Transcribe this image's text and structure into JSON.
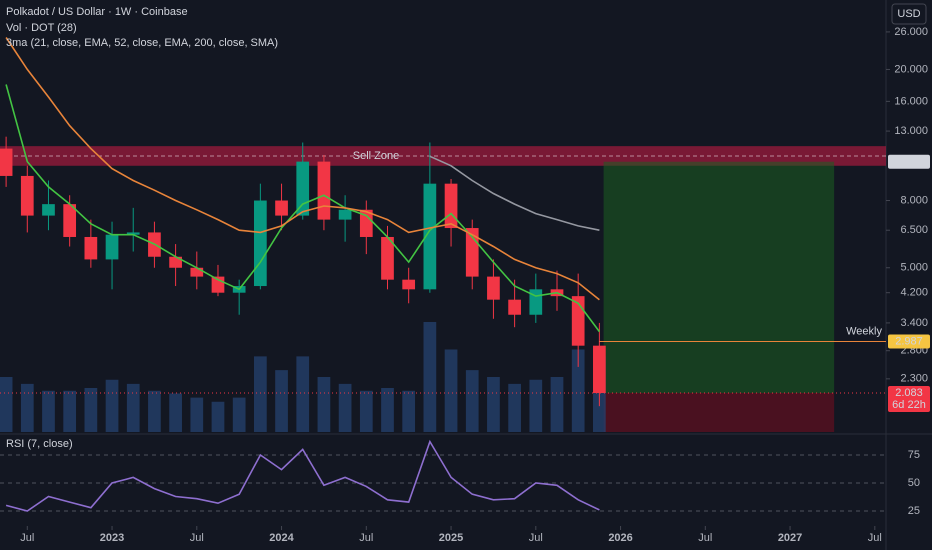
{
  "chart_data": {
    "type": "candlestick",
    "title": "Polkadot / US Dollar · 1W · Coinbase",
    "volume_title": "Vol · DOT (28)",
    "ma_title": "3ma (21, close, EMA, 52, close, EMA, 200, close, SMA)",
    "currency": "USD",
    "log_scale": true,
    "xlim": [
      2022.339,
      2027.566
    ],
    "ylim": [
      1.586,
      32.5
    ],
    "xticks": [
      {
        "value": 2022.5,
        "label": "Jul"
      },
      2023,
      {
        "value": 2023.5,
        "label": "Jul"
      },
      2024,
      {
        "value": 2024.5,
        "label": "Jul"
      },
      2025,
      {
        "value": 2025.5,
        "label": "Jul"
      },
      2026,
      {
        "value": 2026.5,
        "label": "Jul"
      },
      2027,
      {
        "value": 2027.5,
        "label": "Jul"
      }
    ],
    "yticks": [
      {
        "value": 26,
        "label": "26.000"
      },
      {
        "value": 20,
        "label": "20.000"
      },
      {
        "value": 16,
        "label": "16.000"
      },
      {
        "value": 13,
        "label": "13.000"
      },
      {
        "value": 8,
        "label": "8.000"
      },
      {
        "value": 6.5,
        "label": "6.500"
      },
      {
        "value": 5,
        "label": "5.000"
      },
      {
        "value": 4.2,
        "label": "4.200"
      },
      {
        "value": 3.4,
        "label": "3.400"
      },
      {
        "value": 2.8,
        "label": "2.800"
      },
      {
        "value": 2.3,
        "label": "2.300"
      }
    ],
    "up_color": "#089981",
    "down_color": "#f23645",
    "volume_color": "#24406b",
    "candles": [
      [
        2022.375,
        11.5,
        12.5,
        8.8,
        9.5,
        40
      ],
      [
        2022.5,
        9.5,
        10.2,
        6.4,
        7.2,
        35
      ],
      [
        2022.625,
        7.2,
        9.2,
        6.5,
        7.8,
        30
      ],
      [
        2022.75,
        7.8,
        8.3,
        5.8,
        6.2,
        30
      ],
      [
        2022.875,
        6.2,
        7.0,
        5.0,
        5.3,
        32
      ],
      [
        2023.0,
        5.3,
        6.9,
        4.3,
        6.3,
        38
      ],
      [
        2023.125,
        6.3,
        7.6,
        5.6,
        6.4,
        35
      ],
      [
        2023.25,
        6.4,
        6.9,
        5.0,
        5.4,
        30
      ],
      [
        2023.375,
        5.4,
        5.9,
        4.4,
        5.0,
        28
      ],
      [
        2023.5,
        5.0,
        5.6,
        4.3,
        4.7,
        25
      ],
      [
        2023.625,
        4.7,
        5.1,
        4.1,
        4.2,
        22
      ],
      [
        2023.75,
        4.2,
        4.6,
        3.6,
        4.4,
        25
      ],
      [
        2023.875,
        4.4,
        9.0,
        4.3,
        8.0,
        55
      ],
      [
        2024.0,
        8.0,
        9.0,
        6.5,
        7.2,
        45
      ],
      [
        2024.125,
        7.2,
        12.0,
        7.0,
        10.5,
        55
      ],
      [
        2024.25,
        10.5,
        11.0,
        6.5,
        7.0,
        40
      ],
      [
        2024.375,
        7.0,
        8.3,
        6.0,
        7.5,
        35
      ],
      [
        2024.5,
        7.5,
        8.0,
        5.5,
        6.2,
        30
      ],
      [
        2024.625,
        6.2,
        6.7,
        4.3,
        4.6,
        32
      ],
      [
        2024.75,
        4.6,
        5.0,
        3.9,
        4.3,
        30
      ],
      [
        2024.875,
        4.3,
        12.0,
        4.2,
        9.0,
        80
      ],
      [
        2025.0,
        9.0,
        9.3,
        5.8,
        6.6,
        60
      ],
      [
        2025.125,
        6.6,
        7.0,
        4.3,
        4.7,
        45
      ],
      [
        2025.25,
        4.7,
        5.3,
        3.5,
        4.0,
        40
      ],
      [
        2025.375,
        4.0,
        4.6,
        3.3,
        3.6,
        35
      ],
      [
        2025.5,
        3.6,
        4.8,
        3.4,
        4.3,
        38
      ],
      [
        2025.625,
        4.3,
        4.9,
        3.7,
        4.1,
        40
      ],
      [
        2025.75,
        4.1,
        4.8,
        2.5,
        2.9,
        60
      ],
      [
        2025.875,
        2.9,
        3.4,
        1.9,
        2.083,
        55
      ]
    ],
    "series": [
      {
        "color": "#43c443",
        "values": [
          18,
          10.5,
          8.8,
          7.8,
          6.8,
          6.3,
          6.3,
          5.9,
          5.4,
          5.0,
          4.6,
          4.3,
          5.2,
          6.6,
          7.8,
          8.3,
          7.6,
          7.2,
          6.2,
          5.2,
          6.5,
          7.3,
          6.2,
          5.2,
          4.4,
          4.1,
          4.2,
          3.9,
          3.2
        ]
      },
      {
        "color": "#e8843a",
        "values": [
          25,
          20,
          16.5,
          13.5,
          11.5,
          10,
          9.2,
          8.6,
          8.0,
          7.5,
          7.0,
          6.5,
          6.4,
          6.7,
          7.4,
          7.7,
          7.6,
          7.4,
          7.0,
          6.4,
          6.6,
          6.8,
          6.3,
          5.8,
          5.3,
          5.0,
          4.8,
          4.5,
          4.0
        ]
      },
      {
        "color": "#9598a1",
        "values": [
          null,
          null,
          null,
          null,
          null,
          null,
          null,
          null,
          null,
          null,
          null,
          null,
          null,
          null,
          null,
          null,
          null,
          null,
          null,
          null,
          10.9,
          10.2,
          9.2,
          8.4,
          7.8,
          7.3,
          7.0,
          6.7,
          6.5
        ]
      }
    ],
    "sell_zone": {
      "label": "Sell Zone",
      "low": 10.2,
      "high": 11.7
    },
    "position": {
      "x_start": 2025.9,
      "x_end": 2027.26,
      "target": 10.492
    },
    "last_price": 2.083,
    "countdown": "6d 22h",
    "stop_price": 2.074,
    "weekly_level": {
      "label": "Weekly",
      "value": 2.987
    },
    "rsi": {
      "title": "RSI (7, close)",
      "color": "#8e6fd0",
      "ylim": [
        17,
        88.4
      ],
      "yticks": [
        75,
        50,
        25
      ],
      "values": [
        30,
        25,
        38,
        33,
        28,
        50,
        55,
        45,
        38,
        36,
        32,
        40,
        75,
        62,
        80,
        48,
        55,
        47,
        35,
        33,
        87,
        55,
        40,
        35,
        36,
        50,
        48,
        35,
        26
      ]
    }
  }
}
